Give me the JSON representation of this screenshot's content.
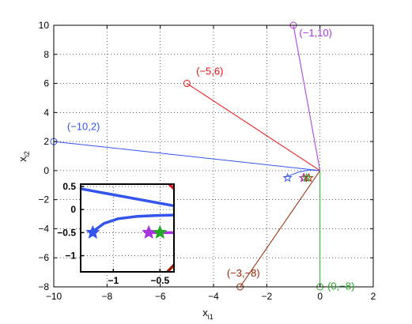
{
  "chart_data": [
    {
      "type": "line",
      "title": "",
      "xlabel_base": "x",
      "xlabel_sub": "i1",
      "ylabel_base": "x",
      "ylabel_sub": "i2",
      "xlim": [
        -10,
        2
      ],
      "ylim": [
        -8,
        10
      ],
      "xticks": [
        -10,
        -8,
        -6,
        -4,
        -2,
        0,
        2
      ],
      "yticks": [
        -8,
        -6,
        -4,
        -2,
        0,
        2,
        4,
        6,
        8,
        10
      ],
      "grid": "dotted",
      "series": [
        {
          "label": "(−10,2)",
          "color": "#3355ee",
          "start": [
            -10,
            2
          ],
          "end": [
            0,
            0
          ],
          "label_at": [
            -9.5,
            2.8
          ],
          "curve": [
            [
              -1.3,
              -0.45
            ],
            [
              -0.8,
              -0.1
            ],
            [
              -0.4,
              0.05
            ],
            [
              0,
              0
            ]
          ],
          "star": [
            -1.22,
            -0.5
          ]
        },
        {
          "label": "(−5,6)",
          "color": "#ee1111",
          "start": [
            -5,
            6
          ],
          "end": [
            0,
            0
          ],
          "label_at": [
            -4.65,
            6.6
          ],
          "star": [
            -0.6,
            -0.5
          ]
        },
        {
          "label": "(−1,10)",
          "color": "#aa33dd",
          "start": [
            -1,
            10
          ],
          "end": [
            0,
            0
          ],
          "label_at": [
            -0.78,
            9.25
          ],
          "star": [
            -0.62,
            -0.5
          ]
        },
        {
          "label": "(−3,−8)",
          "color": "#992200",
          "start": [
            -3,
            -8
          ],
          "end": [
            0,
            0
          ],
          "label_at": [
            -3.5,
            -7.3
          ],
          "star": [
            -0.42,
            -0.5
          ]
        },
        {
          "label": "(0,−8)",
          "color": "#22aa22",
          "start": [
            0,
            -8
          ],
          "end": [
            0,
            0
          ],
          "label_at": [
            0.28,
            -8.2
          ],
          "star": [
            -0.5,
            -0.5
          ]
        }
      ]
    },
    {
      "type": "line",
      "role": "inset",
      "xlim": [
        -1.35,
        -0.35
      ],
      "ylim": [
        -1.35,
        0.55
      ],
      "xticks": [
        -1,
        -0.5
      ],
      "yticks": [
        0.5,
        0,
        -0.5,
        -1
      ],
      "xtick_labels": [
        "−1",
        "−0.5"
      ],
      "ytick_labels": [
        "0.5",
        "0",
        "−0.5",
        "−1"
      ],
      "grid": "dotted",
      "series": [
        {
          "color": "#3355ee",
          "points": [
            [
              -1.35,
              0.45
            ],
            [
              -0.35,
              0.08
            ]
          ]
        },
        {
          "color": "#3355ee",
          "points": [
            [
              -1.22,
              -0.48
            ],
            [
              -1.1,
              -0.3
            ],
            [
              -0.95,
              -0.2
            ],
            [
              -0.75,
              -0.15
            ],
            [
              -0.55,
              -0.13
            ],
            [
              -0.35,
              -0.12
            ]
          ]
        },
        {
          "color": "#ee1111",
          "points": [
            [
              -0.4,
              0.55
            ],
            [
              -0.35,
              0.45
            ]
          ]
        },
        {
          "color": "#992200",
          "points": [
            [
              -0.42,
              -1.35
            ],
            [
              -0.35,
              -1.2
            ]
          ]
        },
        {
          "color": "#aa33dd",
          "points": [
            [
              -0.62,
              -0.5
            ],
            [
              -0.35,
              -0.5
            ]
          ]
        }
      ],
      "stars": [
        {
          "color": "#3355ee",
          "at": [
            -1.22,
            -0.5
          ]
        },
        {
          "color": "#aa33dd",
          "at": [
            -0.62,
            -0.5
          ]
        },
        {
          "color": "#22aa22",
          "at": [
            -0.5,
            -0.5
          ]
        }
      ]
    }
  ]
}
